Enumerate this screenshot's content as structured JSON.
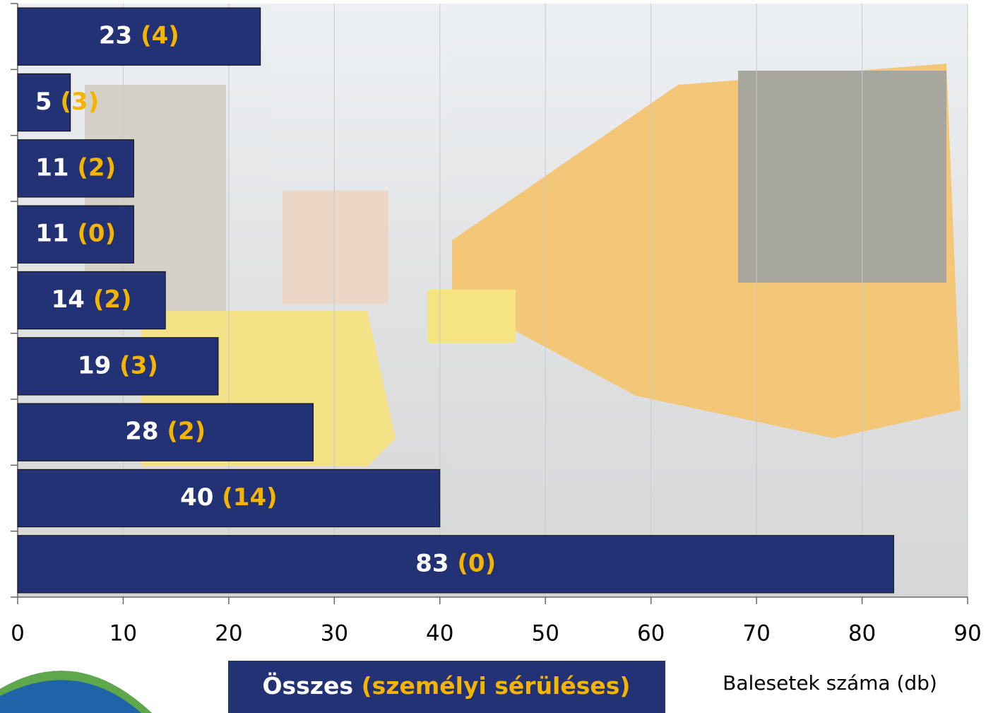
{
  "chart_data": {
    "type": "bar",
    "orientation": "horizontal",
    "categories": [
      null,
      null,
      null,
      null,
      null,
      null,
      null,
      null,
      null
    ],
    "series": [
      {
        "name": "Összes",
        "color": "#233175",
        "values": [
          23,
          5,
          11,
          11,
          14,
          19,
          28,
          40,
          83
        ]
      },
      {
        "name": "(személyi sérüléses)",
        "color": "#f5b400",
        "values": [
          4,
          3,
          2,
          0,
          2,
          3,
          2,
          14,
          0
        ],
        "value_labels": [
          "(4)",
          "(3)",
          "(2)",
          "(0)",
          "(2)",
          "(3)",
          "(2)",
          "(14)",
          "(0)"
        ]
      }
    ],
    "xlabel": "Balesetek száma (db)",
    "xlim": [
      0,
      90
    ],
    "xticks": [
      0,
      10,
      20,
      30,
      40,
      50,
      60,
      70,
      80,
      90
    ],
    "grid": true
  }
}
